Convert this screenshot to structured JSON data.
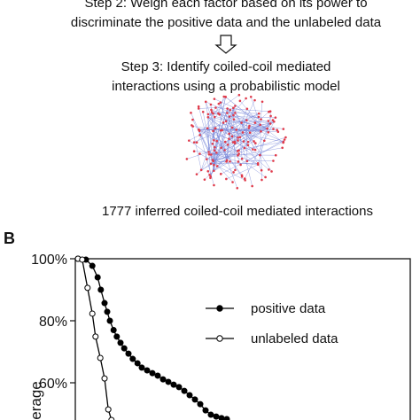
{
  "figure": {
    "steps": [
      "Step 2: Weigh each factor based on its power to",
      "discriminate the positive data and the unlabeled data",
      "Step 3: Identify coiled-coil mediated",
      "interactions using a probabilistic model"
    ],
    "network_caption": "1777 inferred coiled-coil mediated interactions",
    "panel_label": "B"
  },
  "chart_data": {
    "type": "line",
    "ylabel": "erage",
    "xlim": [
      0,
      63
    ],
    "ylim": [
      48,
      100
    ],
    "yticks": [
      {
        "value": 100,
        "label": "100%"
      },
      {
        "value": 80,
        "label": "80%"
      },
      {
        "value": 60,
        "label": "60%"
      }
    ],
    "series": [
      {
        "name": "positive data",
        "color": "#000000",
        "marker": "filled",
        "x": [
          0.5,
          2,
          3.2,
          4.2,
          4.8,
          5.5,
          6,
          6.5,
          7.2,
          7.8,
          8.5,
          9.2,
          10,
          10.8,
          11.7,
          12.5,
          13.5,
          14.5,
          15.5,
          16.5,
          17.5,
          18.5,
          19.5,
          20.5,
          21.5,
          22.5,
          23.5,
          24.5,
          25.5,
          26.5,
          27.5,
          28.5
        ],
        "values": [
          100,
          99.7,
          97.7,
          94,
          90,
          85.7,
          82.9,
          80,
          77,
          74.9,
          72.9,
          71.1,
          69.4,
          67.7,
          66.3,
          64.9,
          64,
          63.1,
          62.3,
          61.1,
          60.3,
          59.4,
          58.6,
          57.4,
          56,
          54.6,
          53.1,
          51.1,
          49.7,
          49.1,
          48.6,
          48.3
        ]
      },
      {
        "name": "unlabeled data",
        "color": "#000000",
        "marker": "open",
        "x": [
          0.5,
          1.3,
          2.3,
          3.2,
          3.8,
          4.7,
          5.5,
          6.2,
          6.8
        ],
        "values": [
          100,
          99.7,
          90.6,
          82.3,
          74.9,
          68,
          61.4,
          51.4,
          48
        ]
      }
    ]
  }
}
